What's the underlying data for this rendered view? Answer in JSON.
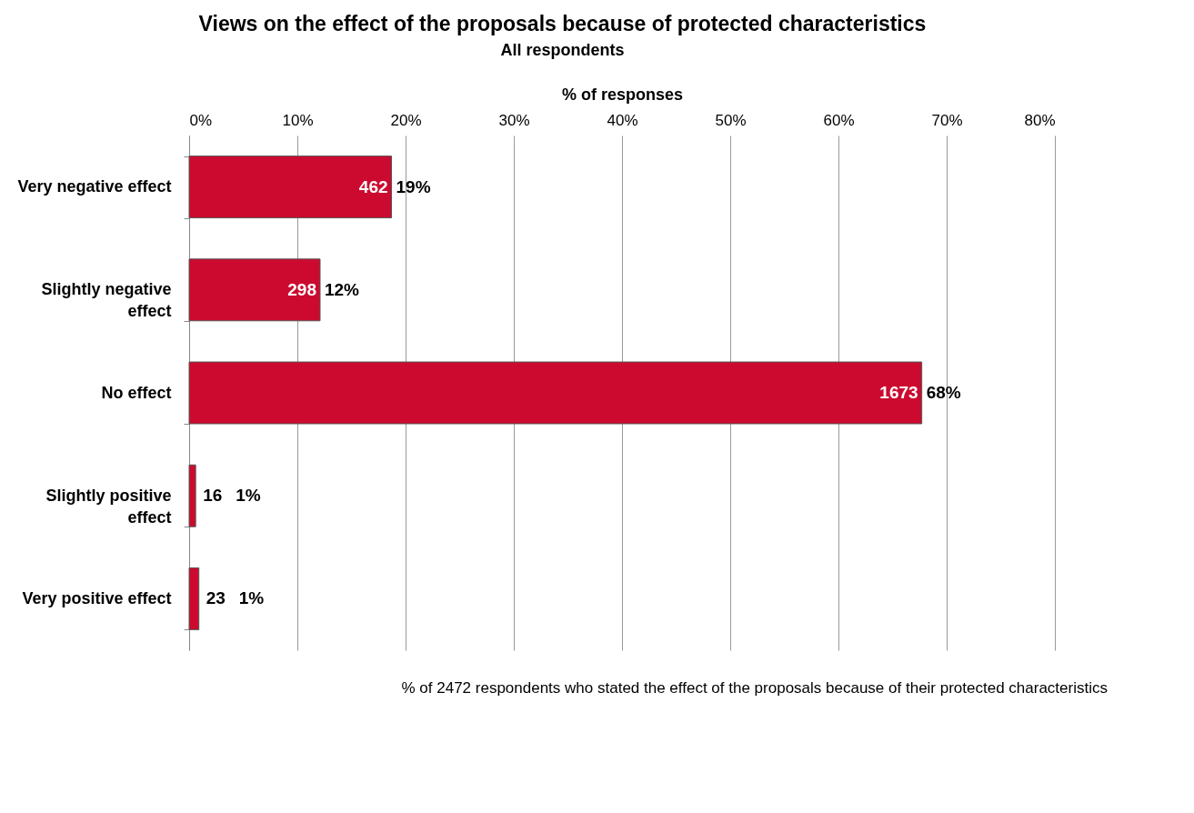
{
  "chart_data": {
    "type": "bar",
    "orientation": "horizontal",
    "title": "Views on the effect of the proposals because of protected characteristics",
    "subtitle": "All respondents",
    "xlabel": "% of responses",
    "categories": [
      "Very negative effect",
      "Slightly negative effect",
      "No effect",
      "Slightly positive effect",
      "Very positive effect"
    ],
    "values": [
      18.7,
      12.1,
      67.7,
      0.6,
      0.9
    ],
    "value_labels": [
      "19%",
      "12%",
      "68%",
      "1%",
      "1%"
    ],
    "color": "#cc0a2f",
    "xlim": [
      0,
      80
    ],
    "xticks": [
      {
        "value": 0,
        "label": "0%"
      },
      {
        "value": 10,
        "label": "10%"
      },
      {
        "value": 20,
        "label": "20%"
      },
      {
        "value": 30,
        "label": "30%"
      },
      {
        "value": 40,
        "label": "40%"
      },
      {
        "value": 50,
        "label": "50%"
      },
      {
        "value": 60,
        "label": "60%"
      },
      {
        "value": 70,
        "label": "70%"
      },
      {
        "value": 80,
        "label": "80%"
      }
    ],
    "grid": "x",
    "annotations": [
      {
        "text": "462",
        "x": 18.7,
        "y": "Very negative effect"
      },
      {
        "text": "298",
        "x": 12.1,
        "y": "Slightly negative effect"
      },
      {
        "text": "1673",
        "x": 67.7,
        "y": "No effect"
      },
      {
        "text": "16",
        "x": 0.6,
        "y": "Slightly positive effect"
      },
      {
        "text": "23",
        "x": 0.9,
        "y": "Very positive effect"
      },
      "% of 2472 respondents who stated the effect of the proposals because of their protected characteristics"
    ]
  }
}
